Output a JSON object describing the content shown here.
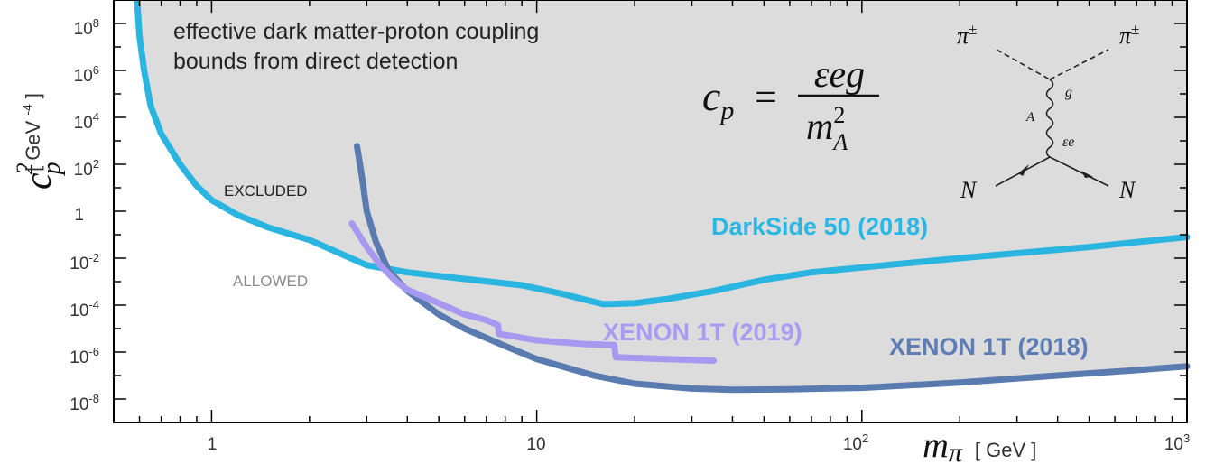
{
  "chart_data": {
    "type": "line",
    "xscale": "log",
    "yscale": "log",
    "xlim": [
      0.5,
      1000
    ],
    "ylim": [
      1e-09,
      1000000000.0
    ],
    "xlabel": {
      "symbol": "m",
      "sub": "π",
      "unit": "[ GeV ]"
    },
    "ylabel": {
      "symbol": "c",
      "sub": "p",
      "sup": "2",
      "unit": "[ GeV ",
      "unit_exp": "-4",
      "unit_end": " ]"
    },
    "x_ticks": [
      {
        "value": 1,
        "base": "1",
        "exp": ""
      },
      {
        "value": 10,
        "base": "10",
        "exp": ""
      },
      {
        "value": 100,
        "base": "10",
        "exp": "2"
      },
      {
        "value": 1000,
        "base": "10",
        "exp": "3"
      }
    ],
    "y_ticks": [
      {
        "value": 100000000.0,
        "base": "10",
        "exp": "8"
      },
      {
        "value": 1000000.0,
        "base": "10",
        "exp": "6"
      },
      {
        "value": 10000.0,
        "base": "10",
        "exp": "4"
      },
      {
        "value": 100.0,
        "base": "10",
        "exp": "2"
      },
      {
        "value": 1,
        "base": "1",
        "exp": ""
      },
      {
        "value": 0.01,
        "base": "10",
        "exp": "-2"
      },
      {
        "value": 0.0001,
        "base": "10",
        "exp": "-4"
      },
      {
        "value": 1e-06,
        "base": "10",
        "exp": "-6"
      },
      {
        "value": 1e-08,
        "base": "10",
        "exp": "-8"
      }
    ],
    "annotations": {
      "title_line1": "effective dark matter-proton coupling",
      "title_line2": "bounds from direct detection",
      "excluded": "EXCLUDED",
      "allowed": "ALLOWED"
    },
    "formula": {
      "lhs": "c",
      "lhs_sub": "p",
      "eq": "=",
      "numerator": "εeg",
      "den": "m",
      "den_sup": "2",
      "den_sub": "A"
    },
    "feynman": {
      "pi_left": "π",
      "pi_right": "π",
      "pi_charge": "±",
      "g": "g",
      "A": "A",
      "epsilon_e": "εe",
      "n_left": "N",
      "n_right": "N"
    },
    "grid": false,
    "excluded_fill": "#dcdcdc",
    "series": [
      {
        "name": "DarkSide 50 (2018)",
        "color": "#29b5e0",
        "label_color": "#2ab7e3",
        "points": [
          [
            0.59,
            1000000000.0
          ],
          [
            0.6,
            30000000.0
          ],
          [
            0.62,
            1000000.0
          ],
          [
            0.65,
            30000.0
          ],
          [
            0.7,
            2000
          ],
          [
            0.8,
            100
          ],
          [
            0.9,
            12
          ],
          [
            1.0,
            3
          ],
          [
            1.2,
            0.7
          ],
          [
            1.5,
            0.2
          ],
          [
            2.0,
            0.06
          ],
          [
            3.0,
            0.005
          ],
          [
            4.0,
            0.0025
          ],
          [
            6.0,
            0.0013
          ],
          [
            9.0,
            0.0007
          ],
          [
            12.0,
            0.0003
          ],
          [
            16.0,
            0.00011
          ],
          [
            20.0,
            0.00012
          ],
          [
            25.0,
            0.00018
          ],
          [
            35.0,
            0.0004
          ],
          [
            50.0,
            0.0012
          ],
          [
            70.0,
            0.0025
          ],
          [
            100.0,
            0.004
          ],
          [
            200.0,
            0.01
          ],
          [
            500.0,
            0.03
          ],
          [
            1000.0,
            0.08
          ]
        ]
      },
      {
        "name": "XENON 1T (2018)",
        "color": "#5a7bb0",
        "label_color": "#5e7db5",
        "points": [
          [
            2.8,
            600
          ],
          [
            2.9,
            30
          ],
          [
            3.0,
            1
          ],
          [
            3.2,
            0.05
          ],
          [
            3.5,
            0.003
          ],
          [
            4.0,
            0.0004
          ],
          [
            5.0,
            4e-05
          ],
          [
            6.0,
            1e-05
          ],
          [
            8.0,
            1.8e-06
          ],
          [
            10.0,
            5e-07
          ],
          [
            15.0,
            1e-07
          ],
          [
            20.0,
            4.5e-08
          ],
          [
            30.0,
            2.8e-08
          ],
          [
            40.0,
            2.5e-08
          ],
          [
            60.0,
            2.6e-08
          ],
          [
            100.0,
            3e-08
          ],
          [
            200.0,
            5e-08
          ],
          [
            400.0,
            1e-07
          ],
          [
            700.0,
            1.7e-07
          ],
          [
            1000.0,
            2.5e-07
          ]
        ]
      },
      {
        "name": "XENON 1T (2019)",
        "color": "#a899f0",
        "label_color": "#a99af2",
        "points": [
          [
            2.7,
            0.3
          ],
          [
            3.0,
            0.03
          ],
          [
            3.3,
            0.005
          ],
          [
            3.7,
            0.001
          ],
          [
            4.0,
            0.00045
          ],
          [
            5.0,
            0.00012
          ],
          [
            6.0,
            4e-05
          ],
          [
            7.0,
            2.3e-05
          ],
          [
            7.6,
            1.4e-05
          ],
          [
            7.65,
            6e-06
          ],
          [
            10.0,
            3.2e-06
          ],
          [
            14.0,
            2.2e-06
          ],
          [
            17.3,
            2e-06
          ],
          [
            17.5,
            6e-07
          ],
          [
            25.0,
            5e-07
          ],
          [
            35.0,
            4.3e-07
          ]
        ]
      }
    ]
  }
}
